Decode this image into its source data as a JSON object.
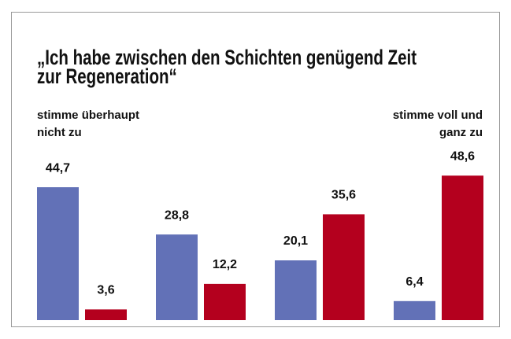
{
  "chart_data": {
    "type": "bar",
    "title": [
      "„Ich habe zwischen den Schichten genügend Zeit",
      "zur Regeneration“"
    ],
    "annotation_left": [
      "stimme überhaupt",
      "nicht zu"
    ],
    "annotation_right": [
      "stimme voll und",
      "ganz zu"
    ],
    "categories": [
      null,
      null,
      null,
      null
    ],
    "series": [
      {
        "color": "#6271b7",
        "values": [
          44.7,
          28.8,
          20.1,
          6.4
        ],
        "value_labels": [
          "44,7",
          "28,8",
          "20,1",
          "6,4"
        ]
      },
      {
        "color": "#b4001e",
        "values": [
          3.6,
          12.2,
          35.6,
          48.6
        ],
        "value_labels": [
          "3,6",
          "12,2",
          "35,6",
          "48,6"
        ]
      }
    ]
  }
}
